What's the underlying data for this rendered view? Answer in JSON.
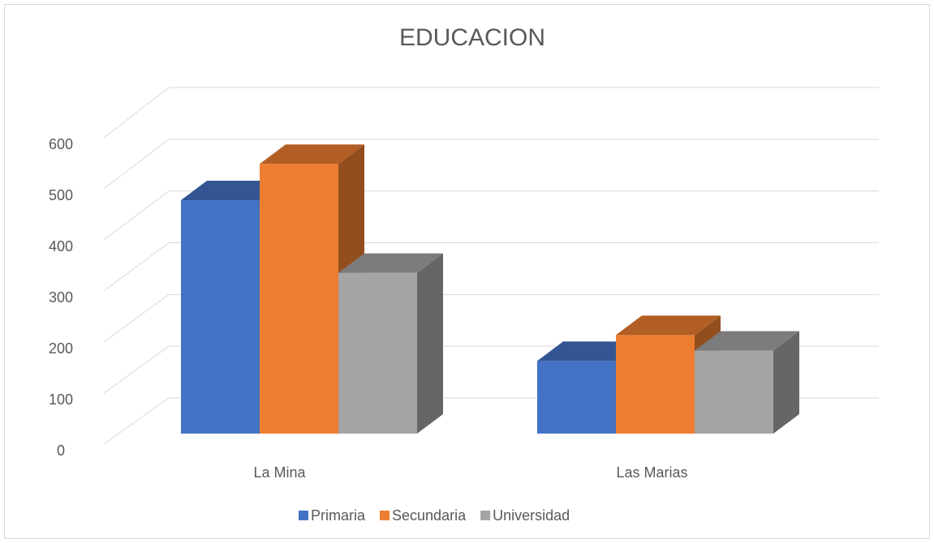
{
  "chart_data": {
    "type": "bar3d",
    "title": "EDUCACION",
    "categories": [
      "La Mina",
      "Las Marias"
    ],
    "series": [
      {
        "name": "Primaria",
        "color": "#4472c4",
        "values": [
          450,
          140
        ]
      },
      {
        "name": "Secundaria",
        "color": "#ed7d31",
        "values": [
          520,
          190
        ]
      },
      {
        "name": "Universidad",
        "color": "#a5a5a5",
        "values": [
          310,
          160
        ]
      }
    ],
    "ylim": [
      0,
      600
    ],
    "yticks": [
      0,
      100,
      200,
      300,
      400,
      500,
      600
    ],
    "grid": true,
    "legend": "bottom"
  }
}
